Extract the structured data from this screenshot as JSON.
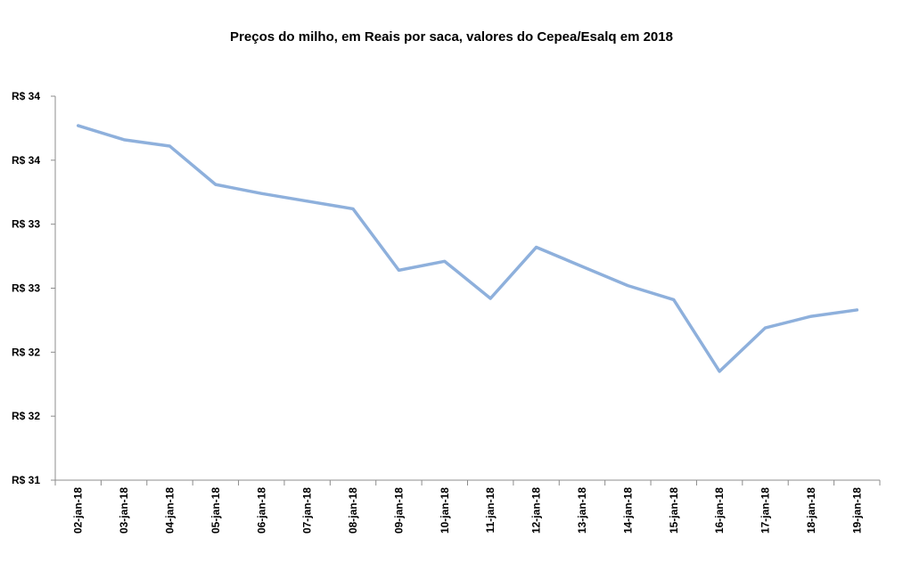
{
  "chart_data": {
    "type": "line",
    "title": "Preços do milho, em  Reais por saca, valores do Cepea/Esalq em 2018",
    "xlabel": "",
    "ylabel": "",
    "ylim": [
      31,
      34
    ],
    "y_tick_values": [
      31,
      31.5,
      32,
      32.5,
      33,
      33.5,
      34
    ],
    "y_tick_labels": [
      "R$ 31",
      "R$ 32",
      "R$ 32",
      "R$ 33",
      "R$ 33",
      "R$ 34",
      "R$ 34"
    ],
    "categories": [
      "02-jan-18",
      "03-jan-18",
      "04-jan-18",
      "05-jan-18",
      "06-jan-18",
      "07-jan-18",
      "08-jan-18",
      "09-jan-18",
      "10-jan-18",
      "11-jan-18",
      "12-jan-18",
      "13-jan-18",
      "14-jan-18",
      "15-jan-18",
      "16-jan-18",
      "17-jan-18",
      "18-jan-18",
      "19-jan-18"
    ],
    "series": [
      {
        "color": "#8EB0DC",
        "values": [
          33.77,
          33.66,
          33.61,
          33.31,
          33.24,
          33.18,
          33.12,
          32.64,
          32.71,
          32.42,
          32.82,
          32.67,
          32.52,
          32.41,
          31.85,
          32.19,
          32.28,
          32.33
        ]
      }
    ],
    "grid": false,
    "legend": "none"
  }
}
